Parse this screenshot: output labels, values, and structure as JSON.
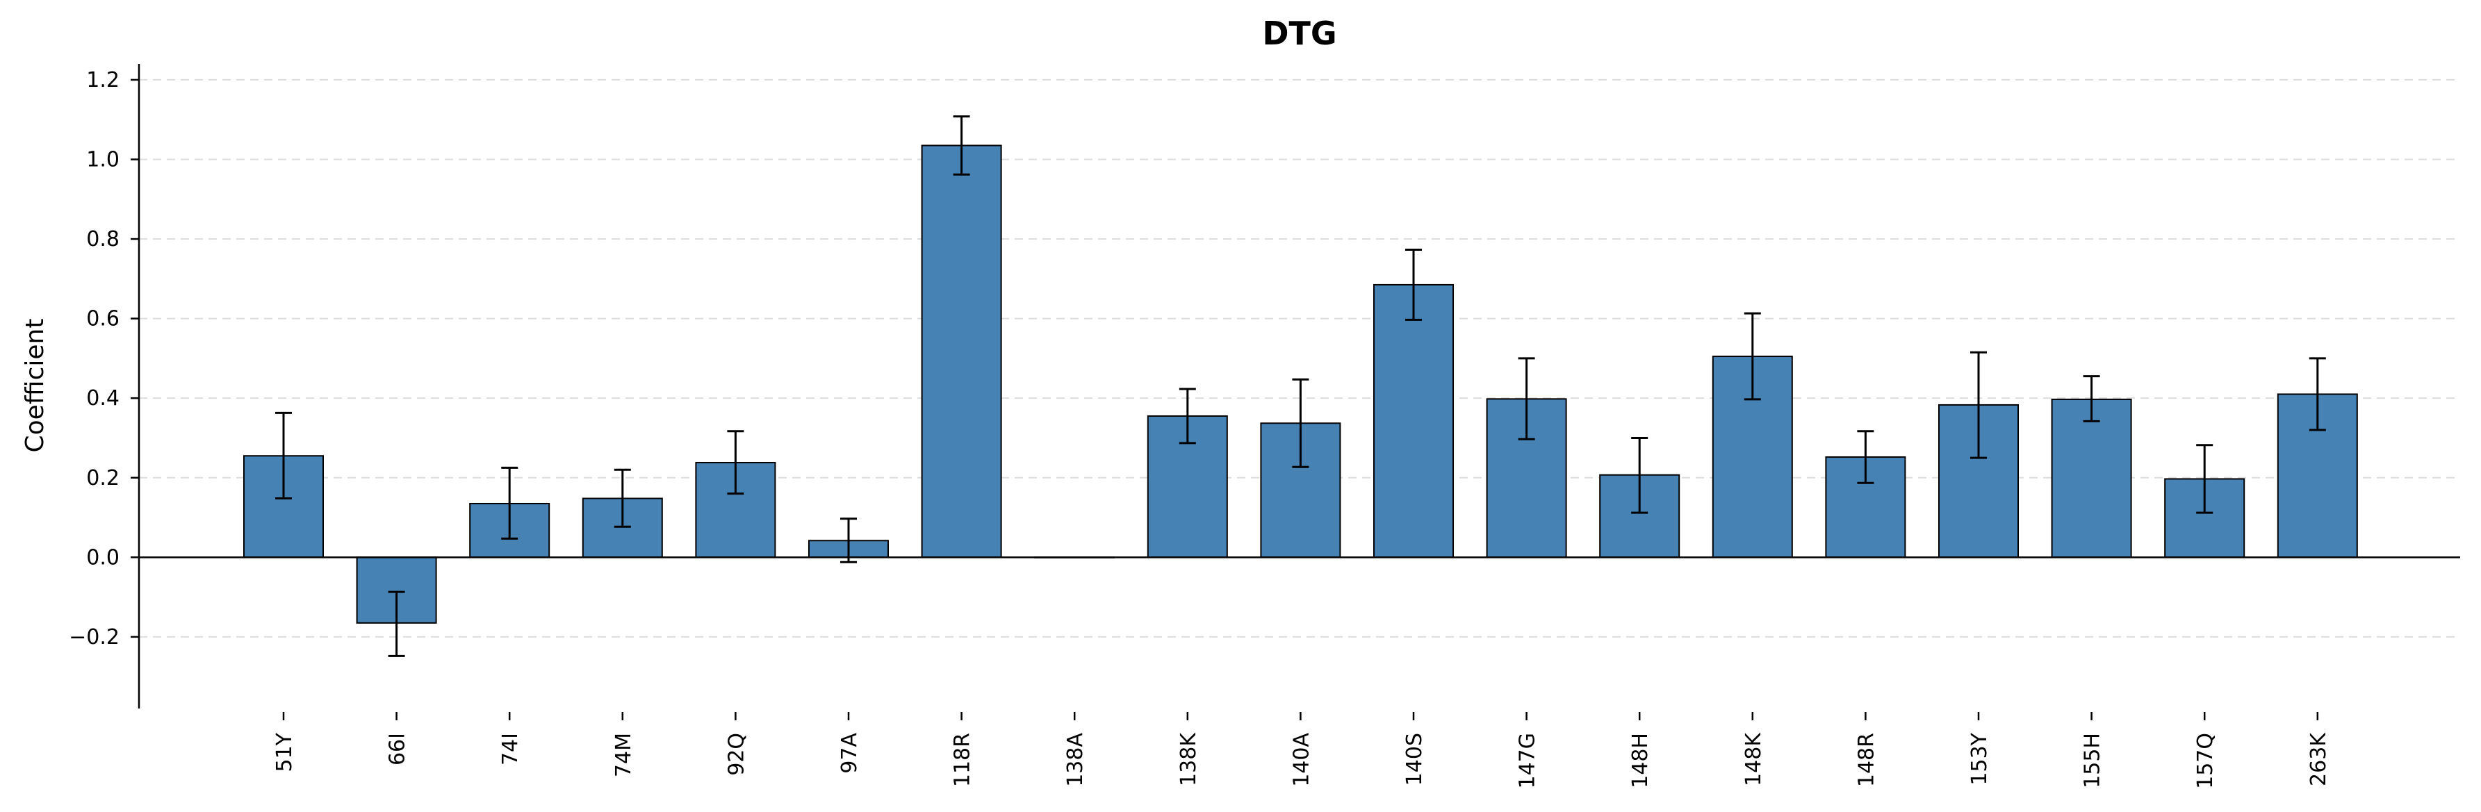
{
  "chart_data": {
    "type": "bar",
    "title": "DTG",
    "xlabel": "",
    "ylabel": "Coefficient",
    "ylim": [
      -0.38,
      1.24
    ],
    "yticks": [
      -0.2,
      0.0,
      0.2,
      0.4,
      0.6,
      0.8,
      1.0,
      1.2
    ],
    "ytick_labels": [
      "−0.2",
      "0.0",
      "0.2",
      "0.4",
      "0.6",
      "0.8",
      "1.0",
      "1.2"
    ],
    "grid": "y, dashed",
    "categories": [
      "51Y",
      "66I",
      "74I",
      "74M",
      "92Q",
      "97A",
      "118R",
      "138A",
      "138K",
      "140A",
      "140S",
      "147G",
      "148H",
      "148K",
      "148R",
      "153Y",
      "155H",
      "157Q",
      "263K"
    ],
    "values": [
      0.255,
      -0.165,
      0.135,
      0.148,
      0.238,
      0.042,
      1.035,
      0.0,
      0.355,
      0.337,
      0.685,
      0.398,
      0.207,
      0.505,
      0.252,
      0.383,
      0.397,
      0.197,
      0.41
    ],
    "error_low": [
      0.148,
      -0.248,
      0.047,
      0.077,
      0.16,
      -0.012,
      0.962,
      0.0,
      0.287,
      0.227,
      0.597,
      0.297,
      0.112,
      0.397,
      0.187,
      0.25,
      0.342,
      0.112,
      0.32
    ],
    "error_high": [
      0.363,
      -0.087,
      0.225,
      0.22,
      0.317,
      0.097,
      1.108,
      0.0,
      0.423,
      0.447,
      0.773,
      0.5,
      0.3,
      0.613,
      0.317,
      0.515,
      0.455,
      0.282,
      0.5
    ],
    "colors": {
      "bar": "#4682b4",
      "edge": "#000000",
      "grid": "#dddddd",
      "axis": "#000000"
    }
  }
}
